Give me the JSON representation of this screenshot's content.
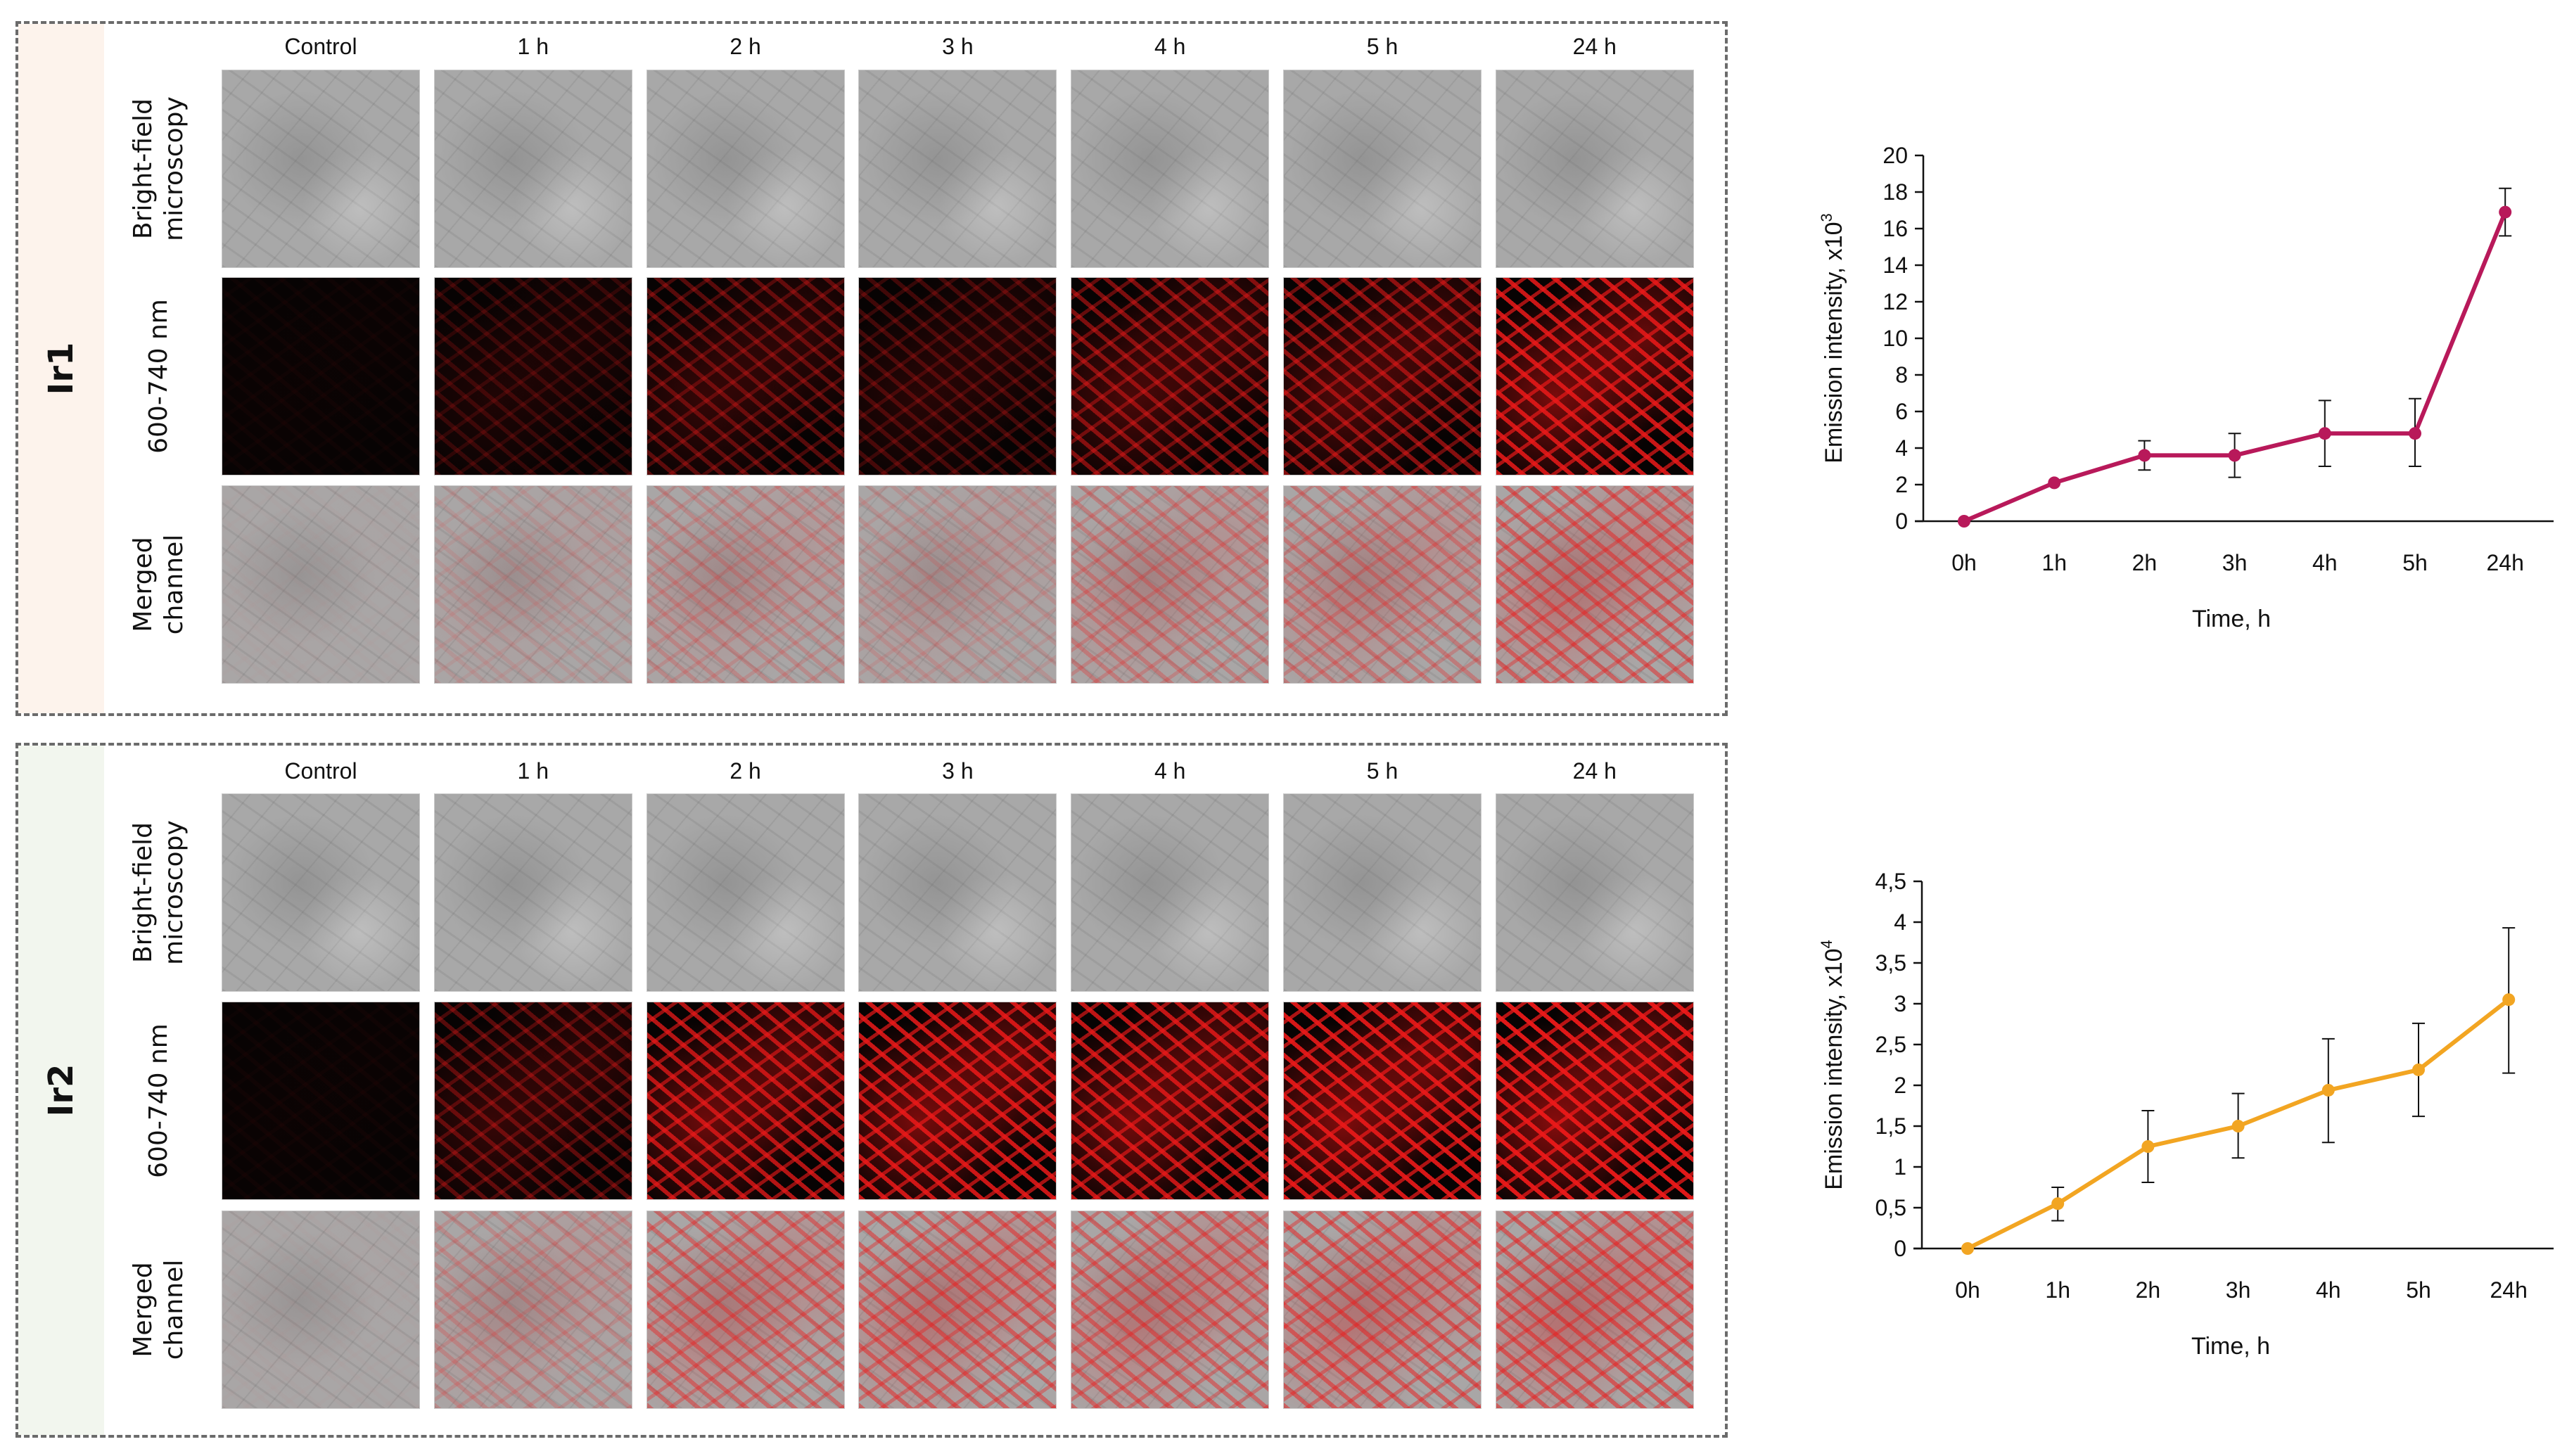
{
  "panels": [
    {
      "label": "Ir1",
      "label_bg": "#fdf3ec",
      "columns": [
        "Control",
        "1 h",
        "2 h",
        "3 h",
        "4 h",
        "5 h",
        "24 h"
      ],
      "rows": [
        {
          "label_line1": "Bright-field",
          "label_line2": "microscopy",
          "type": "bf"
        },
        {
          "label_line1": "600-740 nm",
          "label_line2": "",
          "type": "fl"
        },
        {
          "label_line1": "Merged",
          "label_line2": "channel",
          "type": "mg"
        }
      ],
      "red_intensity": [
        0.03,
        0.18,
        0.35,
        0.25,
        0.5,
        0.55,
        0.85
      ]
    },
    {
      "label": "Ir2",
      "label_bg": "#f2f6ee",
      "columns": [
        "Control",
        "1 h",
        "2 h",
        "3 h",
        "4 h",
        "5 h",
        "24 h"
      ],
      "rows": [
        {
          "label_line1": "Bright-field",
          "label_line2": "microscopy",
          "type": "bf"
        },
        {
          "label_line1": "600-740 nm",
          "label_line2": "",
          "type": "fl"
        },
        {
          "label_line1": "Merged",
          "label_line2": "channel",
          "type": "mg"
        }
      ],
      "red_intensity": [
        0.03,
        0.35,
        0.75,
        0.85,
        0.8,
        0.9,
        0.95
      ]
    }
  ],
  "chart_data": [
    {
      "type": "line",
      "title": "",
      "xlabel": "Time, h",
      "ylabel": "Emission intensity, x10",
      "ylabel_exponent": "3",
      "categories": [
        "0h",
        "1h",
        "2h",
        "3h",
        "4h",
        "5h",
        "24h"
      ],
      "series": [
        {
          "name": "Ir1",
          "color": "#b8195a",
          "values": [
            0,
            2.1,
            3.6,
            3.6,
            4.8,
            4.8,
            16.9
          ],
          "error_upper": [
            0,
            2.1,
            4.4,
            4.8,
            6.6,
            6.7,
            18.2
          ],
          "error_lower": [
            0,
            2.1,
            2.8,
            2.4,
            3.0,
            3.0,
            15.6
          ]
        }
      ],
      "ylim": [
        0,
        20
      ],
      "yticks": [
        0,
        2,
        4,
        6,
        8,
        10,
        12,
        14,
        16,
        18,
        20
      ],
      "ytick_labels": [
        "0",
        "2",
        "4",
        "6",
        "8",
        "10",
        "12",
        "14",
        "16",
        "18",
        "20"
      ],
      "grid": false,
      "legend": "none"
    },
    {
      "type": "line",
      "title": "",
      "xlabel": "Time, h",
      "ylabel": "Emission intensity, x10",
      "ylabel_exponent": "4",
      "categories": [
        "0h",
        "1h",
        "2h",
        "3h",
        "4h",
        "5h",
        "24h"
      ],
      "series": [
        {
          "name": "Ir2",
          "color": "#f2a522",
          "values": [
            0,
            0.55,
            1.25,
            1.5,
            1.94,
            2.19,
            3.05
          ],
          "error_upper": [
            0,
            0.75,
            1.69,
            1.9,
            2.57,
            2.76,
            3.93
          ],
          "error_lower": [
            0,
            0.34,
            0.81,
            1.11,
            1.3,
            1.62,
            2.15
          ]
        }
      ],
      "ylim": [
        0,
        4.5
      ],
      "yticks": [
        0,
        0.5,
        1,
        1.5,
        2,
        2.5,
        3,
        3.5,
        4,
        4.5
      ],
      "ytick_labels": [
        "0",
        "0,5",
        "1",
        "1,5",
        "2",
        "2,5",
        "3",
        "3,5",
        "4",
        "4,5"
      ],
      "grid": false,
      "legend": "none"
    }
  ]
}
